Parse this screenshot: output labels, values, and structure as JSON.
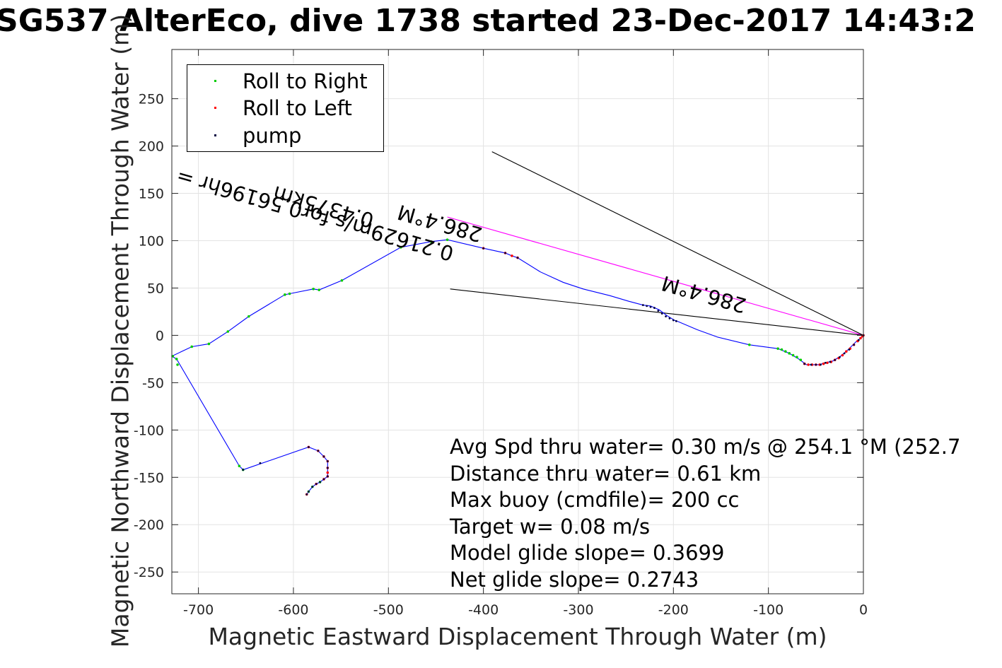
{
  "title": "SG537 AlterEco, dive 1738 started 23-Dec-2017 14:43:2",
  "colors": {
    "track": "#0000ff",
    "roll_right": "#00cc00",
    "roll_left": "#ff0000",
    "pump": "#000040",
    "magenta_line": "#ff00ff",
    "black_line": "#000000"
  },
  "chart_data": {
    "type": "scatter",
    "xlabel": "Magnetic Eastward Displacement Through Water (m)",
    "ylabel": "Magnetic Northward Displacement Through Water (m)",
    "xlim": [
      -728,
      0
    ],
    "ylim": [
      -273,
      302
    ],
    "grid": true,
    "xticks": [
      -700,
      -600,
      -500,
      -400,
      -300,
      -200,
      -100,
      0
    ],
    "yticks": [
      250,
      200,
      150,
      100,
      50,
      0,
      -50,
      -100,
      -150,
      -200,
      -250
    ],
    "legend": {
      "position": "top-left",
      "entries": [
        {
          "label": "Roll to Right",
          "color": "#00cc00"
        },
        {
          "label": "Roll to Left",
          "color": "#ff0000"
        },
        {
          "label": "pump",
          "color": "#000040"
        }
      ]
    },
    "track": [
      [
        -586,
        -168
      ],
      [
        -584,
        -165
      ],
      [
        -580,
        -160
      ],
      [
        -576,
        -157
      ],
      [
        -572,
        -155
      ],
      [
        -568,
        -152
      ],
      [
        -564,
        -149
      ],
      [
        -564,
        -140
      ],
      [
        -564,
        -133
      ],
      [
        -568,
        -128
      ],
      [
        -574,
        -122
      ],
      [
        -584,
        -118
      ],
      [
        -653,
        -142
      ],
      [
        -657,
        -138
      ],
      [
        -723,
        -25
      ],
      [
        -728,
        -22
      ],
      [
        -707,
        -12
      ],
      [
        -689,
        -9
      ],
      [
        -669,
        4
      ],
      [
        -647,
        20
      ],
      [
        -609,
        43
      ],
      [
        -604,
        44
      ],
      [
        -579,
        49
      ],
      [
        -573,
        48
      ],
      [
        -549,
        58
      ],
      [
        -487,
        93
      ],
      [
        -455,
        99
      ],
      [
        -438,
        101
      ],
      [
        -400,
        92
      ],
      [
        -377,
        87
      ],
      [
        -370,
        84
      ],
      [
        -364,
        82
      ],
      [
        -340,
        67
      ],
      [
        -316,
        56
      ],
      [
        -295,
        49
      ],
      [
        -267,
        42
      ],
      [
        -247,
        36
      ],
      [
        -232,
        32
      ],
      [
        -224,
        31
      ],
      [
        -215,
        27
      ],
      [
        -207,
        21
      ],
      [
        -199,
        16
      ],
      [
        -196,
        15
      ],
      [
        -175,
        6
      ],
      [
        -153,
        -2
      ],
      [
        -120,
        -10
      ],
      [
        -90,
        -14
      ],
      [
        -78,
        -19
      ],
      [
        -68,
        -25
      ],
      [
        -60,
        -31
      ],
      [
        -55,
        -31
      ],
      [
        -47,
        -31
      ],
      [
        -40,
        -29
      ],
      [
        -32,
        -27
      ],
      [
        -24,
        -22
      ],
      [
        -16,
        -15
      ],
      [
        -8,
        -7
      ],
      [
        -2,
        -2
      ],
      [
        0,
        0
      ]
    ],
    "roll_right": [
      [
        -584,
        -165
      ],
      [
        -580,
        -160
      ],
      [
        -572,
        -155
      ],
      [
        -723,
        -25
      ],
      [
        -727,
        -22
      ],
      [
        -722,
        -31
      ],
      [
        -707,
        -12
      ],
      [
        -689,
        -9
      ],
      [
        -669,
        4
      ],
      [
        -647,
        20
      ],
      [
        -609,
        43
      ],
      [
        -604,
        44
      ],
      [
        -579,
        49
      ],
      [
        -573,
        48
      ],
      [
        -549,
        58
      ],
      [
        -487,
        93
      ],
      [
        -455,
        99
      ],
      [
        -438,
        101
      ],
      [
        -657,
        -138
      ],
      [
        -653,
        -142
      ],
      [
        -120,
        -10
      ],
      [
        -90,
        -14
      ],
      [
        -86,
        -15
      ],
      [
        -82,
        -17
      ],
      [
        -78,
        -19
      ],
      [
        -74,
        -21
      ],
      [
        -70,
        -23
      ],
      [
        -66,
        -26
      ]
    ],
    "roll_left": [
      [
        -586,
        -168
      ],
      [
        -576,
        -157
      ],
      [
        -568,
        -152
      ],
      [
        -564,
        -149
      ],
      [
        -564,
        -145
      ],
      [
        -564,
        -140
      ],
      [
        -564,
        -133
      ],
      [
        -568,
        -128
      ],
      [
        -574,
        -122
      ],
      [
        -584,
        -118
      ],
      [
        -400,
        92
      ],
      [
        -377,
        87
      ],
      [
        -370,
        84
      ],
      [
        -364,
        82
      ],
      [
        -62,
        -30
      ],
      [
        -58,
        -31
      ],
      [
        -54,
        -31
      ],
      [
        -50,
        -31
      ],
      [
        -46,
        -31
      ],
      [
        -42,
        -30
      ],
      [
        -38,
        -29
      ],
      [
        -34,
        -28
      ],
      [
        -30,
        -26
      ],
      [
        -26,
        -24
      ],
      [
        -22,
        -21
      ],
      [
        -18,
        -17
      ],
      [
        -14,
        -14
      ],
      [
        -10,
        -10
      ],
      [
        -6,
        -6
      ],
      [
        -3,
        -3
      ],
      [
        -1,
        -1
      ],
      [
        0,
        0
      ]
    ],
    "pump": [
      [
        -586,
        -168
      ],
      [
        -584,
        -165
      ],
      [
        -580,
        -160
      ],
      [
        -576,
        -157
      ],
      [
        -572,
        -155
      ],
      [
        -568,
        -152
      ],
      [
        -564,
        -149
      ],
      [
        -564,
        -140
      ],
      [
        -564,
        -133
      ],
      [
        -568,
        -128
      ],
      [
        -574,
        -122
      ],
      [
        -584,
        -118
      ],
      [
        -653,
        -142
      ],
      [
        -635,
        -135
      ],
      [
        -400,
        92
      ],
      [
        -377,
        87
      ],
      [
        -364,
        82
      ],
      [
        -232,
        32
      ],
      [
        -228,
        31
      ],
      [
        -224,
        30
      ],
      [
        -220,
        29
      ],
      [
        -216,
        26
      ],
      [
        -212,
        23
      ],
      [
        -208,
        20
      ],
      [
        -204,
        18
      ],
      [
        -200,
        16
      ],
      [
        -197,
        15
      ],
      [
        -62,
        -30
      ],
      [
        -55,
        -31
      ],
      [
        -50,
        -31
      ],
      [
        -45,
        -31
      ],
      [
        -40,
        -29
      ],
      [
        -35,
        -28
      ],
      [
        -30,
        -26
      ],
      [
        -25,
        -23
      ],
      [
        -20,
        -19
      ],
      [
        -15,
        -15
      ],
      [
        -10,
        -10
      ],
      [
        -5,
        -5
      ],
      [
        0,
        0
      ]
    ],
    "lines": [
      {
        "color": "#ff00ff",
        "points": [
          [
            -438,
            125
          ],
          [
            0,
            0
          ]
        ]
      },
      {
        "color": "#000000",
        "points": [
          [
            -391,
            194
          ],
          [
            0,
            0
          ]
        ]
      },
      {
        "color": "#000000",
        "points": [
          [
            -435,
            49
          ],
          [
            0,
            0
          ]
        ]
      }
    ],
    "annotations": [
      {
        "text": "286.4°M",
        "x": -400,
        "y": 113,
        "rotate": 195.9
      },
      {
        "text": "0.4375km",
        "x": -514,
        "y": 128,
        "rotate": 195.9
      },
      {
        "text": "0.21629m/s for0.56196hr =",
        "x": -430,
        "y": 93,
        "rotate": 195.9
      },
      {
        "text": "286.4°M",
        "x": -122,
        "y": 38,
        "rotate": 195.9
      }
    ]
  },
  "stats": {
    "avg_speed": "Avg Spd thru water=  0.30 m/s @ 254.1 °M (252.7",
    "distance": "Distance thru water=  0.61 km",
    "max_buoy": "Max buoy (cmdfile)= 200 cc",
    "target_w": "Target w= 0.08 m/s",
    "model_glide": "Model glide slope= 0.3699",
    "net_glide": "Net glide slope= 0.2743"
  }
}
